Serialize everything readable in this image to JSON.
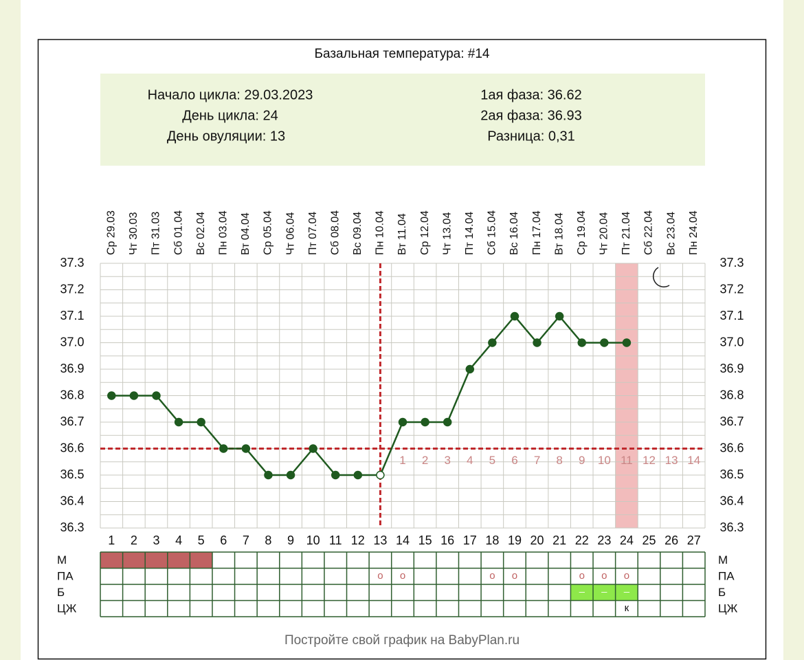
{
  "title": "Базальная температура: #14",
  "info": {
    "left": [
      "Начало цикла: 29.03.2023",
      "День цикла: 24",
      "День овуляции: 13"
    ],
    "right": [
      "1ая фаза: 36.62",
      "2ая фаза: 36.93",
      "Разница: 0,31"
    ]
  },
  "chart_data": {
    "type": "line",
    "x": [
      1,
      2,
      3,
      4,
      5,
      6,
      7,
      8,
      9,
      10,
      11,
      12,
      13,
      14,
      15,
      16,
      17,
      18,
      19,
      20,
      21,
      22,
      23,
      24,
      25,
      26,
      27
    ],
    "dates": [
      "Ср 29.03",
      "Чт 30.03",
      "Пт 31.03",
      "Сб 01.04",
      "Вс 02.04",
      "Пн 03.04",
      "Вт 04.04",
      "Ср 05.04",
      "Чт 06.04",
      "Пт 07.04",
      "Сб 08.04",
      "Вс 09.04",
      "Пн 10.04",
      "Вт 11.04",
      "Ср 12.04",
      "Чт 13.04",
      "Пт 14.04",
      "Сб 15.04",
      "Вс 16.04",
      "Пн 17.04",
      "Вт 18.04",
      "Ср 19.04",
      "Чт 20.04",
      "Пт 21.04",
      "Сб 22.04",
      "Вс 23.04",
      "Пн 24.04"
    ],
    "values": [
      36.8,
      36.8,
      36.8,
      36.7,
      36.7,
      36.6,
      36.6,
      36.5,
      36.5,
      36.6,
      36.5,
      36.5,
      36.5,
      36.7,
      36.7,
      36.7,
      36.9,
      37.0,
      37.1,
      37.0,
      37.1,
      37.0,
      37.0,
      37.0,
      null,
      null,
      null
    ],
    "color": "#1f5a1f",
    "ylim": [
      36.3,
      37.3
    ],
    "yticks": [
      36.3,
      36.4,
      36.5,
      36.6,
      36.7,
      36.8,
      36.9,
      {
        "value": 37.0,
        "label": "37.0"
      },
      37.1,
      37.2,
      37.3
    ],
    "coverline": 36.6,
    "ovulation_day": 13,
    "highlight_day": 24,
    "luteal_days": [
      1,
      2,
      3,
      4,
      5,
      6,
      7,
      8,
      9,
      10,
      11,
      12,
      13,
      14
    ],
    "rows": [
      {
        "label": "М",
        "fill": "#c06262",
        "marks": [
          {
            "day": 1
          },
          {
            "day": 2
          },
          {
            "day": 3
          },
          {
            "day": 4
          },
          {
            "day": 5
          }
        ]
      },
      {
        "label": "ПА",
        "marks": [
          {
            "day": 13,
            "text": "o"
          },
          {
            "day": 14,
            "text": "o"
          },
          {
            "day": 18,
            "text": "o"
          },
          {
            "day": 19,
            "text": "o"
          },
          {
            "day": 22,
            "text": "o"
          },
          {
            "day": 23,
            "text": "o"
          },
          {
            "day": 24,
            "text": "o"
          }
        ]
      },
      {
        "label": "Б",
        "fill": "#8ee84a",
        "marks": [
          {
            "day": 22,
            "text": "–"
          },
          {
            "day": 23,
            "text": "–"
          },
          {
            "day": 24,
            "text": "–"
          }
        ]
      },
      {
        "label": "ЦЖ",
        "marks": [
          {
            "day": 24,
            "text": "к"
          }
        ]
      }
    ]
  },
  "footer": "Постройте свой график на BabyPlan.ru"
}
